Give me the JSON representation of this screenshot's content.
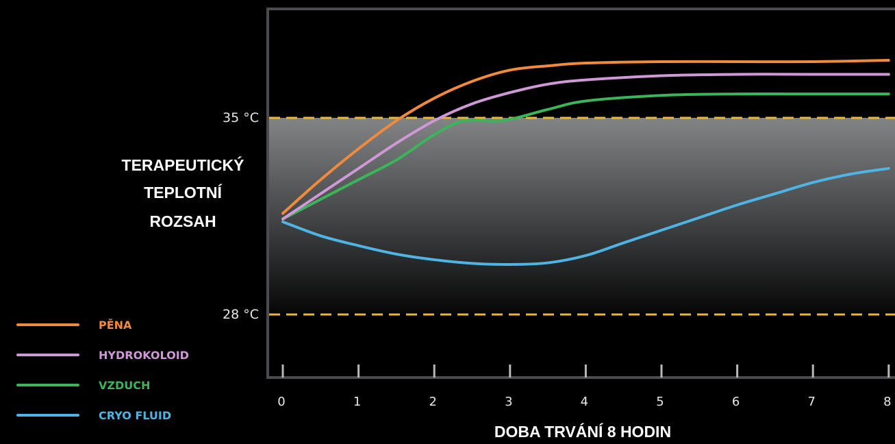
{
  "chart_data": {
    "type": "line",
    "xlabel": "DOBA TRVÁNÍ 8 HODIN",
    "ylabel": "",
    "x_ticks": [
      "0",
      "1",
      "2",
      "3",
      "4",
      "5",
      "6",
      "7",
      "8"
    ],
    "y_ticks": [
      "28 °C",
      "35 °C"
    ],
    "xlim": [
      0,
      8
    ],
    "ylim": [
      25.6,
      38.9
    ],
    "band": {
      "label_lines": [
        "TERAPEUTICKÝ",
        "TEPLOTNÍ",
        "ROZSAH"
      ],
      "from": 28,
      "to": 35
    },
    "series": [
      {
        "name": "PĚNA",
        "color": "#f08a3c",
        "x": [
          0,
          0.5,
          1,
          1.5,
          2,
          2.5,
          3,
          3.5,
          4,
          5,
          6,
          7,
          8
        ],
        "y": [
          31.6,
          32.8,
          33.9,
          34.9,
          35.7,
          36.3,
          36.7,
          36.85,
          36.95,
          37.0,
          37.0,
          37.0,
          37.05
        ]
      },
      {
        "name": "HYDROKOLOID",
        "color": "#cf98d6",
        "x": [
          0,
          0.5,
          1,
          1.5,
          2,
          2.5,
          3,
          3.5,
          4,
          5,
          6,
          7,
          8
        ],
        "y": [
          31.4,
          32.3,
          33.2,
          34.1,
          34.9,
          35.5,
          35.9,
          36.2,
          36.35,
          36.5,
          36.55,
          36.55,
          36.55
        ]
      },
      {
        "name": "VZDUCH",
        "color": "#3cb55a",
        "x": [
          0,
          0.5,
          1,
          1.5,
          2,
          2.4,
          2.9,
          3.5,
          4,
          5,
          6,
          7,
          8
        ],
        "y": [
          31.4,
          32.1,
          32.8,
          33.5,
          34.4,
          34.9,
          34.9,
          35.3,
          35.6,
          35.8,
          35.85,
          35.85,
          35.85
        ]
      },
      {
        "name": "CRYO FLUID",
        "color": "#4fb4e4",
        "x": [
          0,
          0.5,
          1,
          1.5,
          2,
          2.5,
          3,
          3.5,
          4,
          4.5,
          5,
          5.5,
          6,
          6.5,
          7,
          7.5,
          8
        ],
        "y": [
          31.3,
          30.8,
          30.45,
          30.15,
          29.95,
          29.82,
          29.78,
          29.84,
          30.1,
          30.55,
          31.0,
          31.45,
          31.9,
          32.3,
          32.7,
          33.0,
          33.2
        ]
      }
    ],
    "grid": false,
    "legend_position": "bottom-left"
  }
}
